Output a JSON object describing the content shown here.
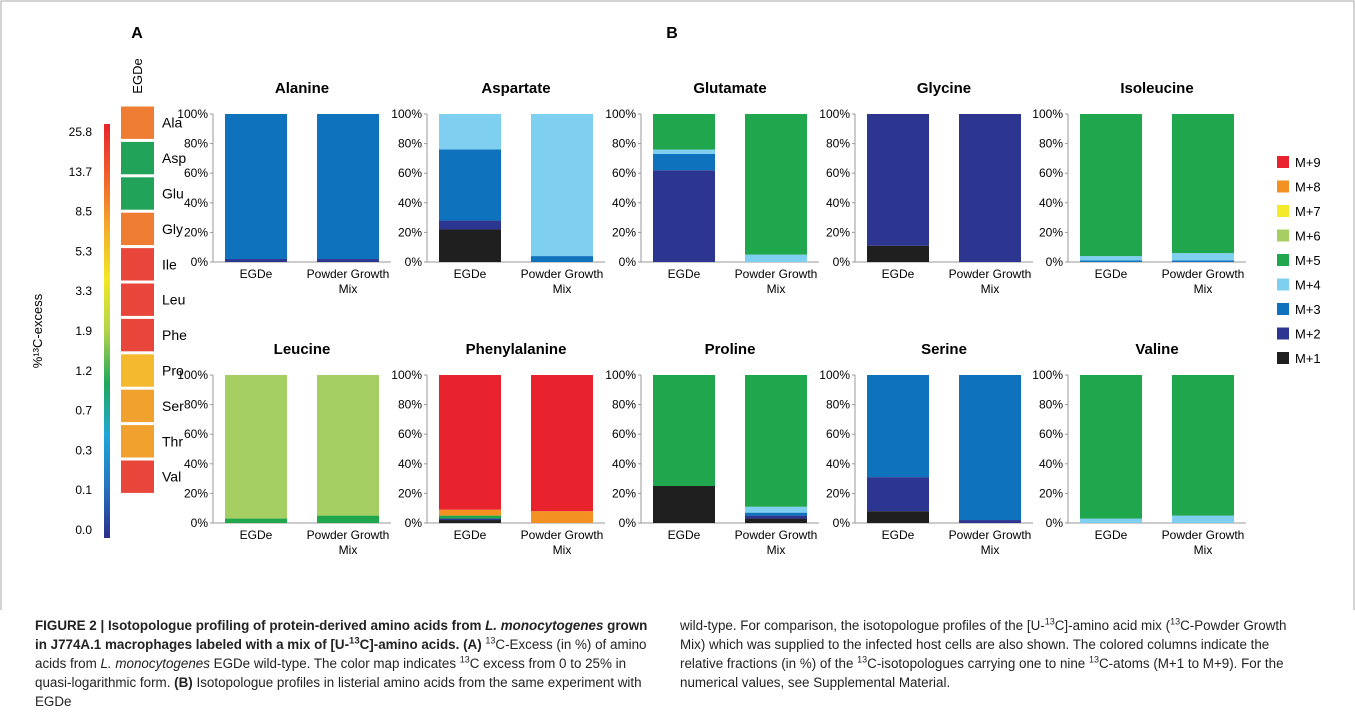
{
  "panel_labels": {
    "a": "A",
    "b": "B"
  },
  "colormap": {
    "title": "%¹³C-excess",
    "tick_labels": [
      "25.8",
      "13.7",
      "8.5",
      "5.3",
      "3.3",
      "1.9",
      "1.2",
      "0.7",
      "0.3",
      "0.1",
      "0.0"
    ],
    "stops": [
      "#e8232d",
      "#f0602c",
      "#f4ab2a",
      "#f2e824",
      "#b3d448",
      "#21a85c",
      "#1fa7d6",
      "#2475be",
      "#2b2e8b"
    ]
  },
  "heatmap": {
    "column_label": "EGDe",
    "rows": [
      {
        "label": "Ala",
        "value": 5.3,
        "color": "#ee7d33"
      },
      {
        "label": "Asp",
        "value": 13.7,
        "color": "#21a35a"
      },
      {
        "label": "Glu",
        "value": 13.7,
        "color": "#21a35a"
      },
      {
        "label": "Gly",
        "value": 5.3,
        "color": "#ee7d33"
      },
      {
        "label": "Ile",
        "value": 25.8,
        "color": "#e8463a"
      },
      {
        "label": "Leu",
        "value": 25.8,
        "color": "#e8463a"
      },
      {
        "label": "Phe",
        "value": 25.8,
        "color": "#e8463a"
      },
      {
        "label": "Pro",
        "value": 8.5,
        "color": "#f4b92f"
      },
      {
        "label": "Ser",
        "value": 8.5,
        "color": "#f1a22e"
      },
      {
        "label": "Thr",
        "value": 8.5,
        "color": "#f1a22e"
      },
      {
        "label": "Val",
        "value": 25.8,
        "color": "#e8463a"
      }
    ]
  },
  "legend": {
    "items": [
      {
        "label": "M+9",
        "color": "#e8232d"
      },
      {
        "label": "M+8",
        "color": "#f39223"
      },
      {
        "label": "M+7",
        "color": "#f4ea29"
      },
      {
        "label": "M+6",
        "color": "#a5cf62"
      },
      {
        "label": "M+5",
        "color": "#20a74e"
      },
      {
        "label": "M+4",
        "color": "#7fcff0"
      },
      {
        "label": "M+3",
        "color": "#0f72bc"
      },
      {
        "label": "M+2",
        "color": "#2c3590"
      },
      {
        "label": "M+1",
        "color": "#1f1f1f"
      }
    ]
  },
  "chart_data": [
    {
      "type": "bar",
      "stacked": true,
      "title": "Alanine",
      "ylim": [
        0,
        100
      ],
      "ytick_labels": [
        "0%",
        "20%",
        "40%",
        "60%",
        "80%",
        "100%"
      ],
      "categories": [
        "EGDe",
        "Powder Growth Mix"
      ],
      "series": [
        {
          "name": "M+1",
          "values": [
            0,
            0
          ]
        },
        {
          "name": "M+2",
          "values": [
            2,
            2
          ]
        },
        {
          "name": "M+3",
          "values": [
            98,
            98
          ]
        }
      ]
    },
    {
      "type": "bar",
      "stacked": true,
      "title": "Aspartate",
      "ylim": [
        0,
        100
      ],
      "ytick_labels": [
        "0%",
        "20%",
        "40%",
        "60%",
        "80%",
        "100%"
      ],
      "categories": [
        "EGDe",
        "Powder Growth Mix"
      ],
      "series": [
        {
          "name": "M+1",
          "values": [
            22,
            0
          ]
        },
        {
          "name": "M+2",
          "values": [
            6,
            0
          ]
        },
        {
          "name": "M+3",
          "values": [
            48,
            4
          ]
        },
        {
          "name": "M+4",
          "values": [
            24,
            96
          ]
        }
      ]
    },
    {
      "type": "bar",
      "stacked": true,
      "title": "Glutamate",
      "ylim": [
        0,
        100
      ],
      "ytick_labels": [
        "0%",
        "20%",
        "40%",
        "60%",
        "80%",
        "100%"
      ],
      "categories": [
        "EGDe",
        "Powder Growth Mix"
      ],
      "series": [
        {
          "name": "M+2",
          "values": [
            62,
            0
          ]
        },
        {
          "name": "M+3",
          "values": [
            11,
            0
          ]
        },
        {
          "name": "M+4",
          "values": [
            3,
            5
          ]
        },
        {
          "name": "M+5",
          "values": [
            24,
            95
          ]
        }
      ]
    },
    {
      "type": "bar",
      "stacked": true,
      "title": "Glycine",
      "ylim": [
        0,
        100
      ],
      "ytick_labels": [
        "0%",
        "20%",
        "40%",
        "60%",
        "80%",
        "100%"
      ],
      "categories": [
        "EGDe",
        "Powder Growth Mix"
      ],
      "series": [
        {
          "name": "M+1",
          "values": [
            11,
            0
          ]
        },
        {
          "name": "M+2",
          "values": [
            89,
            100
          ]
        }
      ]
    },
    {
      "type": "bar",
      "stacked": true,
      "title": "Isoleucine",
      "ylim": [
        0,
        100
      ],
      "ytick_labels": [
        "0%",
        "20%",
        "40%",
        "60%",
        "80%",
        "100%"
      ],
      "categories": [
        "EGDe",
        "Powder Growth Mix"
      ],
      "series": [
        {
          "name": "M+3",
          "values": [
            1,
            1
          ]
        },
        {
          "name": "M+4",
          "values": [
            3,
            5
          ]
        },
        {
          "name": "M+5",
          "values": [
            96,
            94
          ]
        }
      ]
    },
    {
      "type": "bar",
      "stacked": true,
      "title": "Leucine",
      "ylim": [
        0,
        100
      ],
      "ytick_labels": [
        "0%",
        "20%",
        "40%",
        "60%",
        "80%",
        "100%"
      ],
      "categories": [
        "EGDe",
        "Powder Growth Mix"
      ],
      "series": [
        {
          "name": "M+5",
          "values": [
            3,
            5
          ]
        },
        {
          "name": "M+6",
          "values": [
            97,
            95
          ]
        }
      ]
    },
    {
      "type": "bar",
      "stacked": true,
      "title": "Phenylalanine",
      "ylim": [
        0,
        100
      ],
      "ytick_labels": [
        "0%",
        "20%",
        "40%",
        "60%",
        "80%",
        "100%"
      ],
      "categories": [
        "EGDe",
        "Powder Growth Mix"
      ],
      "series": [
        {
          "name": "M+1",
          "values": [
            2,
            0
          ]
        },
        {
          "name": "M+2",
          "values": [
            1,
            0
          ]
        },
        {
          "name": "M+5",
          "values": [
            2,
            0
          ]
        },
        {
          "name": "M+8",
          "values": [
            4,
            8
          ]
        },
        {
          "name": "M+9",
          "values": [
            91,
            92
          ]
        }
      ]
    },
    {
      "type": "bar",
      "stacked": true,
      "title": "Proline",
      "ylim": [
        0,
        100
      ],
      "ytick_labels": [
        "0%",
        "20%",
        "40%",
        "60%",
        "80%",
        "100%"
      ],
      "categories": [
        "EGDe",
        "Powder Growth Mix"
      ],
      "series": [
        {
          "name": "M+1",
          "values": [
            25,
            3
          ]
        },
        {
          "name": "M+2",
          "values": [
            0,
            2
          ]
        },
        {
          "name": "M+3",
          "values": [
            0,
            2
          ]
        },
        {
          "name": "M+4",
          "values": [
            0,
            4
          ]
        },
        {
          "name": "M+5",
          "values": [
            75,
            89
          ]
        }
      ]
    },
    {
      "type": "bar",
      "stacked": true,
      "title": "Serine",
      "ylim": [
        0,
        100
      ],
      "ytick_labels": [
        "0%",
        "20%",
        "40%",
        "60%",
        "80%",
        "100%"
      ],
      "categories": [
        "EGDe",
        "Powder Growth Mix"
      ],
      "series": [
        {
          "name": "M+1",
          "values": [
            8,
            0
          ]
        },
        {
          "name": "M+2",
          "values": [
            23,
            2
          ]
        },
        {
          "name": "M+3",
          "values": [
            69,
            98
          ]
        }
      ]
    },
    {
      "type": "bar",
      "stacked": true,
      "title": "Valine",
      "ylim": [
        0,
        100
      ],
      "ytick_labels": [
        "0%",
        "20%",
        "40%",
        "60%",
        "80%",
        "100%"
      ],
      "categories": [
        "EGDe",
        "Powder Growth Mix"
      ],
      "series": [
        {
          "name": "M+4",
          "values": [
            3,
            5
          ]
        },
        {
          "name": "M+5",
          "values": [
            97,
            95
          ]
        }
      ]
    }
  ],
  "caption": {
    "lead": "FIGURE 2 | Isotopologue profiling of protein-derived amino acids from ",
    "lead_species": "L. monocytogenes",
    "lead_mid": " grown in J774A.1 macrophages labeled with a mix of [U-",
    "lead_iso": "13",
    "lead_end": "C]-amino acids.",
    "panel_a": "(A)",
    "iso_sup": "13",
    "a_text1": "C-Excess (in %) of amino acids from ",
    "a_species": "L. monocytogenes",
    "a_text2": " EGDe wild-type. The color map indicates ",
    "a_text3": "C excess from 0 to 25% in quasi-logarithmic form.",
    "panel_b": "(B)",
    "b_text1": "Isotopologue profiles in listerial amino acids from the same experiment with EGDe wild-type. For comparison, the isotopologue profiles of the [U-",
    "b_text2": "C]-amino acid mix (",
    "b_text3": "C-Powder Growth Mix) which was supplied to the infected host cells are also shown. The colored columns indicate the relative fractions (in %) of the ",
    "b_text4": "C-isotopologues carrying one to nine ",
    "b_text5": "C-atoms (M+1 to M+9). For the numerical values, see Supplemental Material."
  }
}
